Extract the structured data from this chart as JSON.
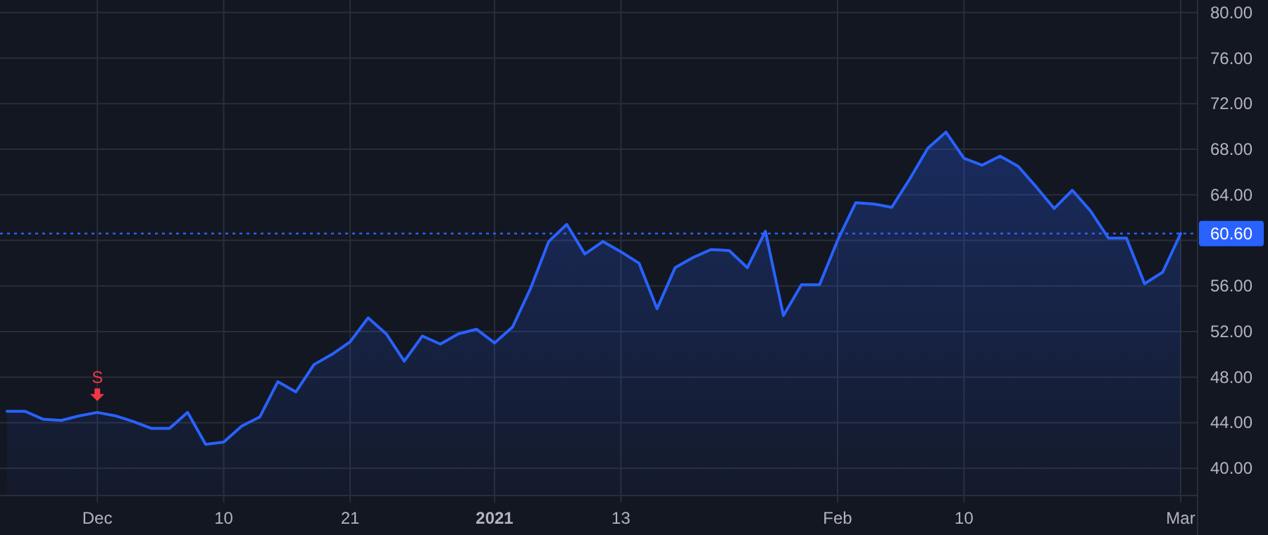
{
  "chart_data": {
    "type": "area",
    "categories": [
      null,
      null,
      null,
      null,
      null,
      "Dec",
      null,
      null,
      null,
      null,
      null,
      null,
      "10",
      null,
      null,
      null,
      null,
      null,
      null,
      "21",
      null,
      null,
      null,
      null,
      null,
      null,
      null,
      "2021",
      null,
      null,
      null,
      null,
      null,
      null,
      "13",
      null,
      null,
      null,
      null,
      null,
      null,
      null,
      null,
      null,
      null,
      null,
      "Feb",
      null,
      null,
      null,
      null,
      null,
      null,
      "10",
      null,
      null,
      null,
      null,
      null,
      null,
      null,
      null,
      null,
      null,
      null,
      "Mar"
    ],
    "series": [
      {
        "color": "#2962ff",
        "values": [
          45.0,
          45.0,
          44.3,
          44.2,
          44.6,
          44.9,
          44.6,
          44.1,
          43.5,
          43.5,
          44.9,
          42.1,
          42.3,
          43.7,
          44.5,
          47.6,
          46.7,
          49.1,
          50.0,
          51.1,
          53.2,
          51.8,
          49.4,
          51.6,
          50.9,
          51.8,
          52.2,
          51.0,
          52.4,
          55.8,
          59.9,
          61.4,
          58.8,
          59.9,
          59.0,
          58.0,
          54.0,
          57.6,
          58.5,
          59.2,
          59.1,
          57.6,
          60.8,
          53.4,
          56.1,
          56.1,
          60.0,
          63.3,
          63.2,
          62.9,
          65.4,
          68.1,
          69.5,
          67.2,
          66.6,
          67.4,
          66.5,
          64.7,
          62.8,
          64.4,
          62.6,
          60.2,
          60.2,
          56.2,
          57.2,
          60.6
        ]
      }
    ],
    "ylim": [
      37.6,
      81.1
    ],
    "yticks": [
      {
        "value": 40,
        "label": "40.00"
      },
      {
        "value": 44,
        "label": "44.00"
      },
      {
        "value": 48,
        "label": "48.00"
      },
      {
        "value": 52,
        "label": "52.00"
      },
      {
        "value": 56,
        "label": "56.00"
      },
      {
        "value": 60,
        "label": null
      },
      {
        "value": 64,
        "label": "64.00"
      },
      {
        "value": 68,
        "label": "68.00"
      },
      {
        "value": 72,
        "label": "72.00"
      },
      {
        "value": 76,
        "label": "76.00"
      },
      {
        "value": 80,
        "label": "80.00"
      }
    ],
    "ref_lines": [
      {
        "axis": "y",
        "value": 60.6,
        "label": "60.60",
        "color": "#2962ff",
        "line_style": "dotted"
      }
    ],
    "annotations": [
      {
        "text": "S",
        "x": "Dec",
        "y": 44.9
      }
    ],
    "grid": true
  }
}
